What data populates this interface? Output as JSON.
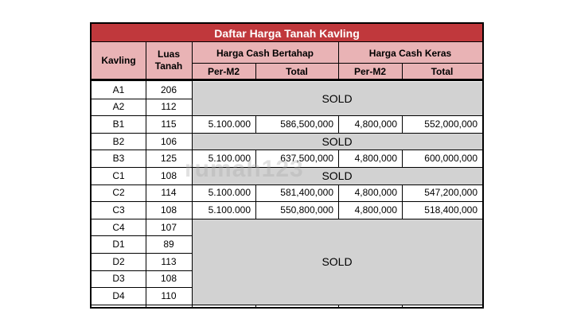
{
  "table": {
    "title": "Daftar Harga Tanah Kavling",
    "headers": {
      "kavling": "Kavling",
      "luas_line1": "Luas",
      "luas_line2": "Tanah",
      "cash_bertahap": "Harga Cash Bertahap",
      "cash_keras": "Harga Cash Keras",
      "per_m2": "Per-M2",
      "total": "Total"
    },
    "rows": [
      {
        "kavling": "A1",
        "luas": "206"
      },
      {
        "kavling": "A2",
        "luas": "112"
      },
      {
        "kavling": "B1",
        "luas": "115",
        "bertahap_per_m2": "5.100.000",
        "bertahap_total": "586,500,000",
        "keras_per_m2": "4,800,000",
        "keras_total": "552,000,000"
      },
      {
        "kavling": "B2",
        "luas": "106"
      },
      {
        "kavling": "B3",
        "luas": "125",
        "bertahap_per_m2": "5.100.000",
        "bertahap_total": "637,500,000",
        "keras_per_m2": "4,800,000",
        "keras_total": "600,000,000"
      },
      {
        "kavling": "C1",
        "luas": "108"
      },
      {
        "kavling": "C2",
        "luas": "114",
        "bertahap_per_m2": "5.100.000",
        "bertahap_total": "581,400,000",
        "keras_per_m2": "4,800,000",
        "keras_total": "547,200,000"
      },
      {
        "kavling": "C3",
        "luas": "108",
        "bertahap_per_m2": "5.100.000",
        "bertahap_total": "550,800,000",
        "keras_per_m2": "4,800,000",
        "keras_total": "518,400,000"
      },
      {
        "kavling": "C4",
        "luas": "107"
      },
      {
        "kavling": "D1",
        "luas": "89"
      },
      {
        "kavling": "D2",
        "luas": "113"
      },
      {
        "kavling": "D3",
        "luas": "108"
      },
      {
        "kavling": "D4",
        "luas": "110"
      }
    ],
    "sold_label": "SOLD"
  },
  "watermark": "rumah123"
}
